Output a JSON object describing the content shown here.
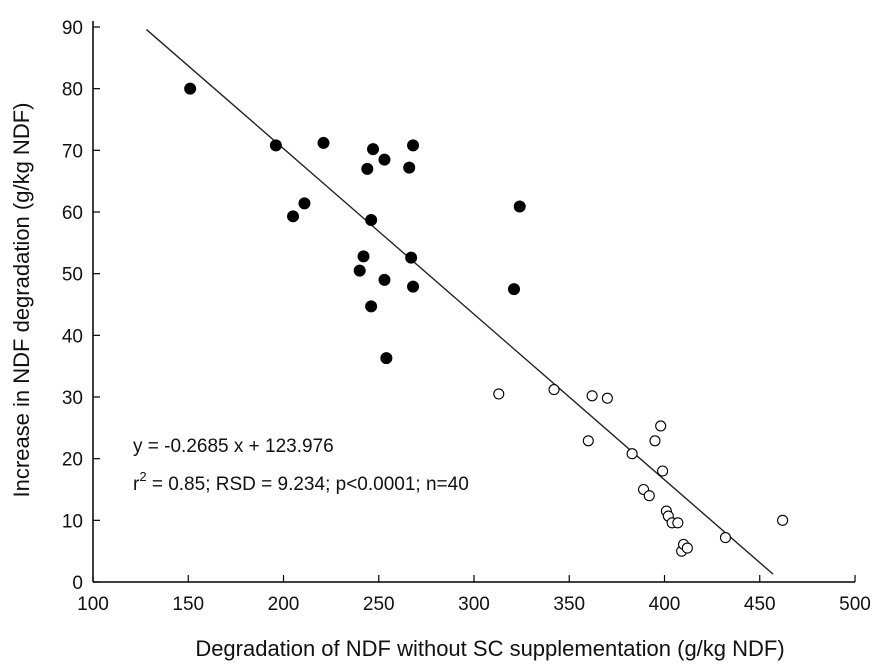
{
  "chart_data": {
    "type": "scatter",
    "title": "",
    "xlabel": "Degradation of NDF without SC supplementation (g/kg NDF)",
    "ylabel": "Increase in NDF degradation (g/kg NDF)",
    "xlim": [
      100,
      500
    ],
    "ylim": [
      0,
      90
    ],
    "x_ticks": [
      100,
      150,
      200,
      250,
      300,
      350,
      400,
      450,
      500
    ],
    "y_ticks": [
      0,
      10,
      20,
      30,
      40,
      50,
      60,
      70,
      80,
      90
    ],
    "grid": false,
    "series": [
      {
        "marker": "filled-circle",
        "color": "#000000",
        "points": [
          [
            151,
            80
          ],
          [
            196,
            70.8
          ],
          [
            205,
            59.3
          ],
          [
            211,
            61.4
          ],
          [
            221,
            71.2
          ],
          [
            240,
            50.5
          ],
          [
            242,
            52.8
          ],
          [
            244,
            67
          ],
          [
            246,
            44.7
          ],
          [
            246,
            58.7
          ],
          [
            247,
            70.2
          ],
          [
            253,
            68.5
          ],
          [
            253,
            49
          ],
          [
            254,
            36.3
          ],
          [
            266,
            67.2
          ],
          [
            267,
            52.6
          ],
          [
            268,
            70.8
          ],
          [
            268,
            47.9
          ],
          [
            321,
            47.5
          ],
          [
            324,
            60.9
          ]
        ]
      },
      {
        "marker": "open-circle",
        "color": "#000000",
        "points": [
          [
            313,
            30.5
          ],
          [
            342,
            31.2
          ],
          [
            360,
            22.9
          ],
          [
            362,
            30.2
          ],
          [
            370,
            29.8
          ],
          [
            383,
            20.8
          ],
          [
            389,
            15
          ],
          [
            392,
            14
          ],
          [
            395,
            22.9
          ],
          [
            398,
            25.3
          ],
          [
            399,
            18
          ],
          [
            401,
            11.5
          ],
          [
            402,
            10.7
          ],
          [
            404,
            9.6
          ],
          [
            407,
            9.6
          ],
          [
            409,
            5
          ],
          [
            410,
            6.1
          ],
          [
            412,
            5.5
          ],
          [
            432,
            7.2
          ],
          [
            462,
            10
          ]
        ]
      }
    ],
    "trendline": {
      "slope": -0.2685,
      "intercept": 123.976,
      "x_range": [
        128,
        457
      ]
    },
    "annotations": {
      "equation": "y = -0.2685 x + 123.976",
      "stats_r": "r",
      "stats_sup": "2",
      "stats_rest": " = 0.85; RSD = 9.234; p<0.0001; n=40"
    }
  }
}
